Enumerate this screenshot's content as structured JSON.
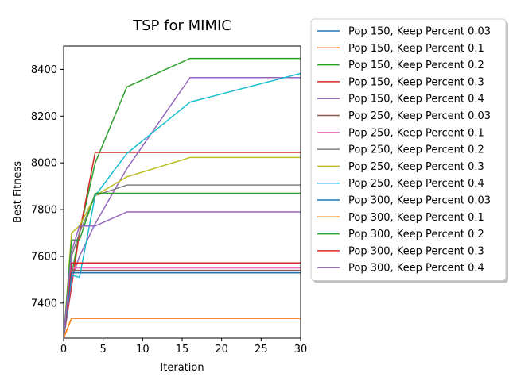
{
  "chart_data": {
    "type": "line",
    "title": "TSP for MIMIC",
    "xlabel": "Iteration",
    "ylabel": "Best Fitness",
    "xlim": [
      0,
      30
    ],
    "ylim": [
      7250,
      8500
    ],
    "xticks": [
      0,
      5,
      10,
      15,
      20,
      25,
      30
    ],
    "yticks": [
      7400,
      7600,
      7800,
      8000,
      8200,
      8400
    ],
    "grid": false,
    "legend_position": "outside-right",
    "series": [
      {
        "name": "Pop 150, Keep Percent 0.03",
        "color": "#1f77b4",
        "x": [
          0,
          1,
          2,
          4,
          8,
          16,
          30
        ],
        "y": [
          7250,
          7530,
          7530,
          7530,
          7530,
          7530,
          7530
        ]
      },
      {
        "name": "Pop 150, Keep Percent 0.1",
        "color": "#ff7f0e",
        "x": [
          0,
          1,
          2,
          4,
          8,
          16,
          30
        ],
        "y": [
          7250,
          7335,
          7335,
          7335,
          7335,
          7335,
          7335
        ]
      },
      {
        "name": "Pop 150, Keep Percent 0.2",
        "color": "#2ca02c",
        "x": [
          0,
          1,
          2,
          4,
          8,
          16,
          30
        ],
        "y": [
          7250,
          7520,
          7700,
          8000,
          8325,
          8447,
          8447
        ]
      },
      {
        "name": "Pop 150, Keep Percent 0.3",
        "color": "#d62728",
        "x": [
          0,
          1,
          2,
          4,
          8,
          16,
          30
        ],
        "y": [
          7250,
          7470,
          7700,
          8045,
          8045,
          8045,
          8045
        ]
      },
      {
        "name": "Pop 150, Keep Percent 0.4",
        "color": "#9467bd",
        "x": [
          0,
          1,
          2,
          4,
          8,
          16,
          30
        ],
        "y": [
          7250,
          7500,
          7600,
          7740,
          7975,
          8365,
          8365
        ]
      },
      {
        "name": "Pop 250, Keep Percent 0.03",
        "color": "#8c564b",
        "x": [
          0,
          1,
          2,
          4,
          8,
          16,
          30
        ],
        "y": [
          7250,
          7540,
          7540,
          7540,
          7540,
          7540,
          7540
        ]
      },
      {
        "name": "Pop 250, Keep Percent 0.1",
        "color": "#e377c2",
        "x": [
          0,
          1,
          2,
          4,
          8,
          16,
          30
        ],
        "y": [
          7250,
          7550,
          7550,
          7550,
          7550,
          7550,
          7550
        ]
      },
      {
        "name": "Pop 250, Keep Percent 0.2",
        "color": "#7f7f7f",
        "x": [
          0,
          1,
          2,
          4,
          8,
          16,
          30
        ],
        "y": [
          7250,
          7600,
          7700,
          7860,
          7905,
          7905,
          7905
        ]
      },
      {
        "name": "Pop 250, Keep Percent 0.3",
        "color": "#bcbd22",
        "x": [
          0,
          1,
          2,
          4,
          8,
          16,
          30
        ],
        "y": [
          7250,
          7700,
          7730,
          7860,
          7940,
          8023,
          8023
        ]
      },
      {
        "name": "Pop 250, Keep Percent 0.4",
        "color": "#17becf",
        "x": [
          0,
          1,
          2,
          4,
          8,
          16,
          30
        ],
        "y": [
          7250,
          7520,
          7510,
          7860,
          8040,
          8260,
          8383
        ]
      },
      {
        "name": "Pop 300, Keep Percent 0.03",
        "color": "#1f77b4",
        "x": [
          0,
          1,
          2,
          4,
          8,
          16,
          30
        ],
        "y": [
          7250,
          7530,
          7530,
          7530,
          7530,
          7530,
          7530
        ]
      },
      {
        "name": "Pop 300, Keep Percent 0.1",
        "color": "#ff7f0e",
        "x": [
          0,
          1,
          2,
          4,
          8,
          16,
          30
        ],
        "y": [
          7250,
          7335,
          7335,
          7335,
          7335,
          7335,
          7335
        ]
      },
      {
        "name": "Pop 300, Keep Percent 0.2",
        "color": "#2ca02c",
        "x": [
          0,
          1,
          2,
          4,
          8,
          16,
          30
        ],
        "y": [
          7250,
          7670,
          7670,
          7870,
          7870,
          7870,
          7870
        ]
      },
      {
        "name": "Pop 300, Keep Percent 0.3",
        "color": "#d62728",
        "x": [
          0,
          1,
          2,
          4,
          8,
          16,
          30
        ],
        "y": [
          7250,
          7572,
          7572,
          7572,
          7572,
          7572,
          7572
        ]
      },
      {
        "name": "Pop 300, Keep Percent 0.4",
        "color": "#9467bd",
        "x": [
          0,
          1,
          2,
          4,
          8,
          16,
          30
        ],
        "y": [
          7250,
          7620,
          7730,
          7730,
          7790,
          7790,
          7790
        ]
      }
    ]
  }
}
